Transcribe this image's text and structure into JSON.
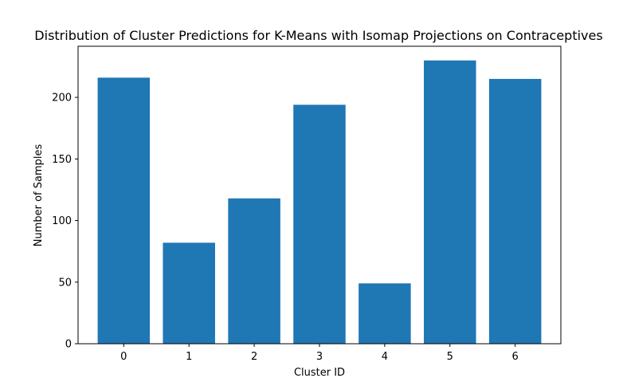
{
  "chart_data": {
    "type": "bar",
    "title": "Distribution of Cluster Predictions for K-Means with Isomap Projections on Contraceptives",
    "xlabel": "Cluster ID",
    "ylabel": "Number of Samples",
    "categories": [
      "0",
      "1",
      "2",
      "3",
      "4",
      "5",
      "6"
    ],
    "values": [
      216,
      82,
      118,
      194,
      49,
      230,
      215
    ],
    "ylim": [
      0,
      241.5
    ],
    "yticks": [
      0,
      50,
      100,
      150,
      200
    ],
    "bar_color": "#1f77b4",
    "grid": false,
    "legend": "none"
  }
}
